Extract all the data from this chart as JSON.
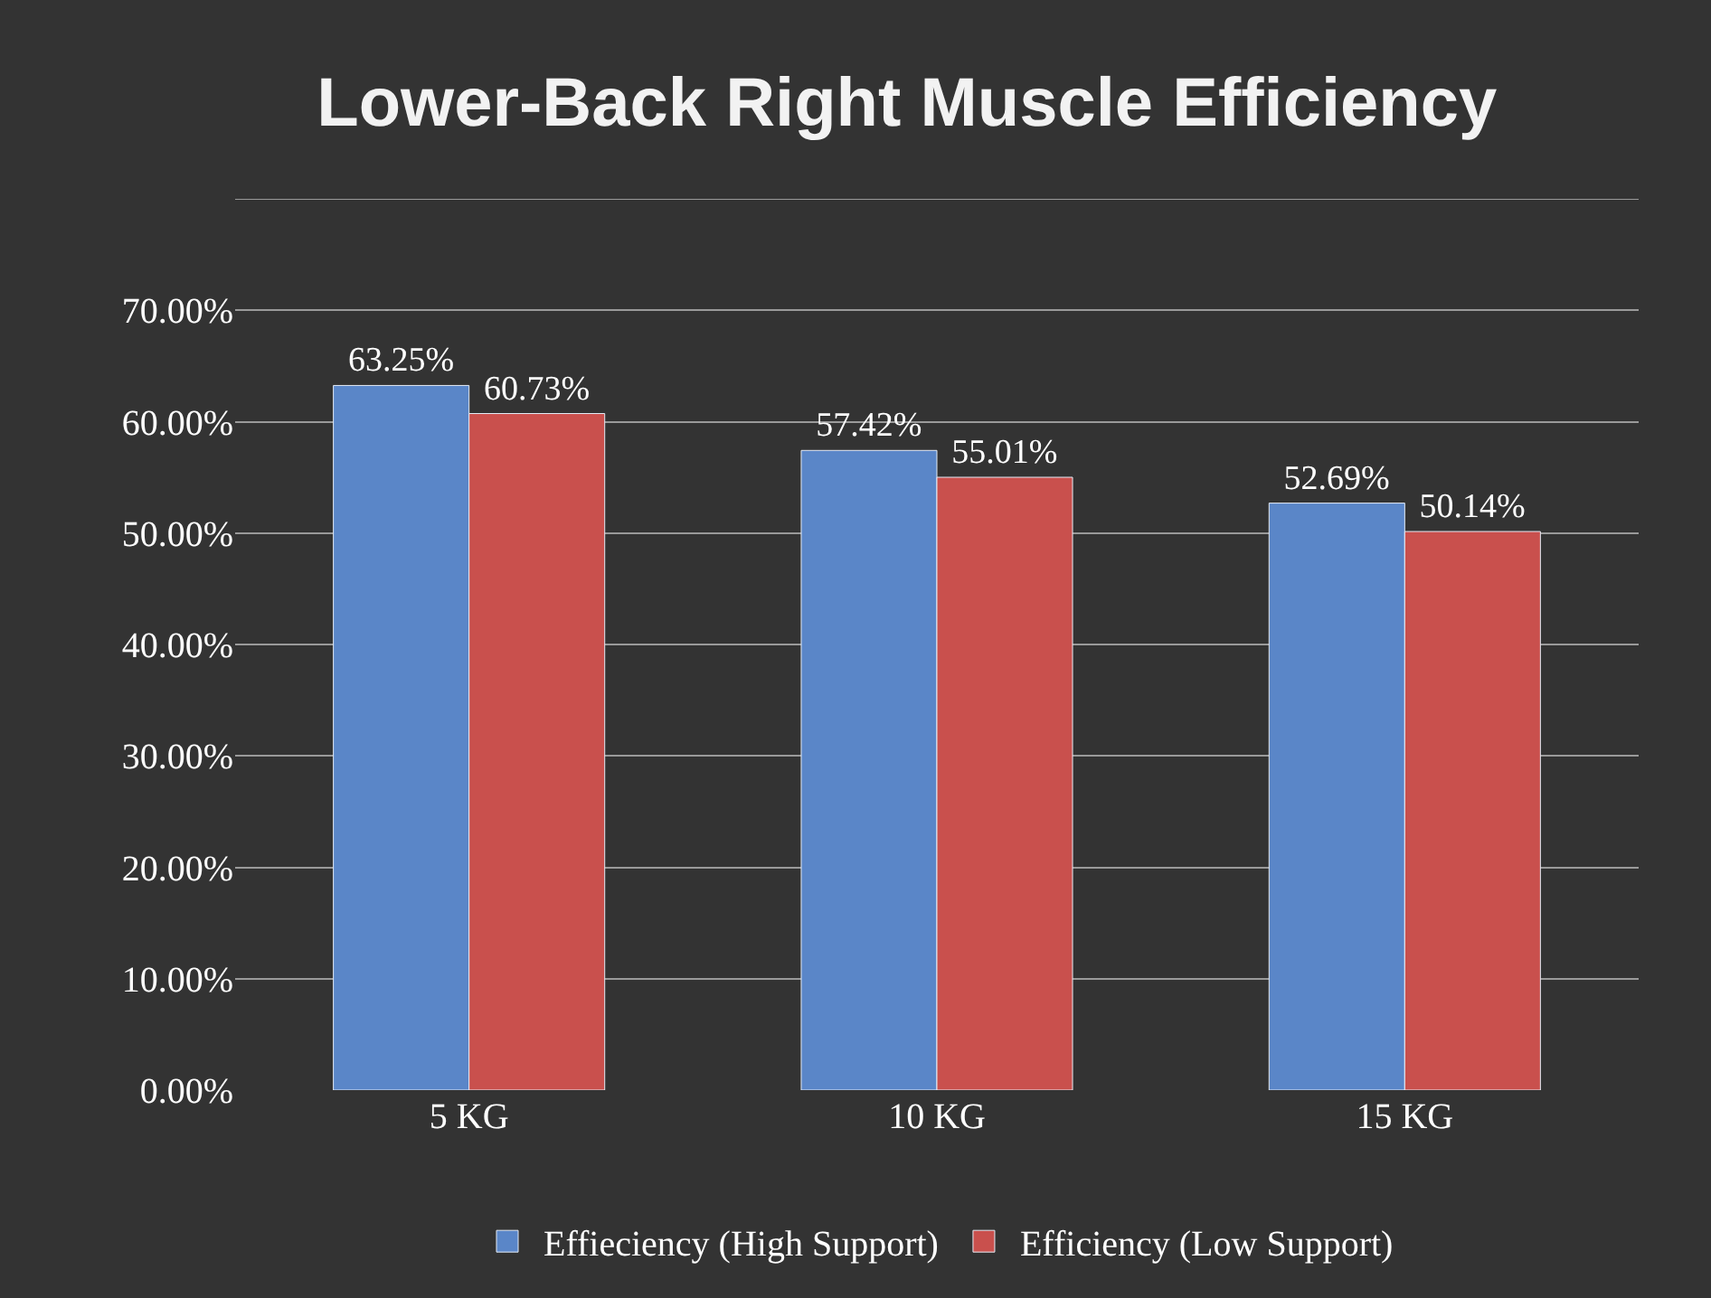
{
  "chart_data": {
    "type": "bar",
    "title": "Lower-Back Right Muscle Efficiency",
    "categories": [
      "5 KG",
      "10 KG",
      "15 KG"
    ],
    "series": [
      {
        "name": "Effieciency (High Support)",
        "color": "#5a86c8",
        "values": [
          63.25,
          57.42,
          52.69
        ],
        "value_labels": [
          "63.25%",
          "57.42%",
          "52.69%"
        ]
      },
      {
        "name": "Efficiency (Low Support)",
        "color": "#c9504d",
        "values": [
          60.73,
          55.01,
          50.14
        ],
        "value_labels": [
          "60.73%",
          "55.01%",
          "50.14%"
        ]
      }
    ],
    "ylim": [
      0,
      80
    ],
    "yticks": [
      {
        "value": 0,
        "label": "0.00%"
      },
      {
        "value": 10,
        "label": "10.00%"
      },
      {
        "value": 20,
        "label": "20.00%"
      },
      {
        "value": 30,
        "label": "30.00%"
      },
      {
        "value": 40,
        "label": "40.00%"
      },
      {
        "value": 50,
        "label": "50.00%"
      },
      {
        "value": 60,
        "label": "60.00%"
      },
      {
        "value": 70,
        "label": "70.00%"
      },
      {
        "value": 80,
        "label": null
      }
    ],
    "grid": "y",
    "legend": "bottom"
  }
}
